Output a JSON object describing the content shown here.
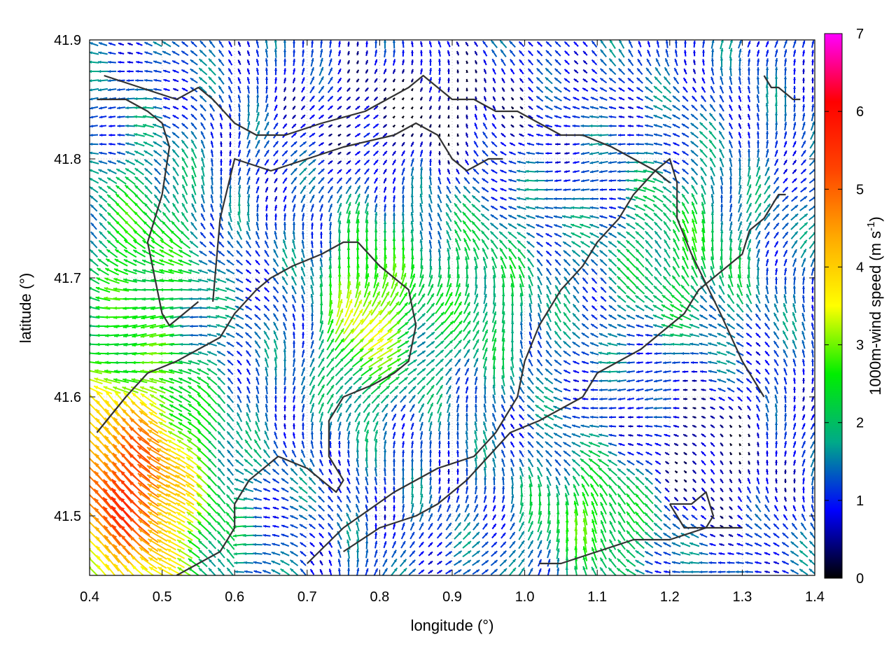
{
  "chart_data": {
    "type": "vector-field",
    "title": "",
    "xlabel": "longitude (°)",
    "ylabel": "latitude (°)",
    "xlim": [
      0.4,
      1.4
    ],
    "ylim": [
      41.45,
      41.9
    ],
    "xticks": [
      0.4,
      0.5,
      0.6,
      0.7,
      0.8,
      0.9,
      1.0,
      1.1,
      1.2,
      1.3,
      1.4
    ],
    "xtick_labels": [
      "0.4",
      "0.5",
      "0.6",
      "0.7",
      "0.8",
      "0.9",
      "1.0",
      "1.1",
      "1.2",
      "1.3",
      "1.4"
    ],
    "yticks": [
      41.5,
      41.6,
      41.7,
      41.8,
      41.9
    ],
    "ytick_labels": [
      "41.5",
      "41.6",
      "41.7",
      "41.8",
      "41.9"
    ],
    "grid": true,
    "legend": "none",
    "colorbar": {
      "label_main": "1000m-wind speed (m s",
      "label_sup": "-1",
      "label_end": ")",
      "range": [
        0,
        7
      ],
      "ticks": [
        "0",
        "1",
        "2",
        "3",
        "4",
        "5",
        "6",
        "7"
      ],
      "colormap": [
        "#000000",
        "#0000ff",
        "#00aa88",
        "#00ee00",
        "#ffff00",
        "#ffaa00",
        "#ff4400",
        "#ff0000",
        "#ff00ff"
      ]
    },
    "vectors_note": "arrow field estimated",
    "contours": [
      {
        "name": "c1",
        "lon": [
          0.42,
          0.47,
          0.52,
          0.55,
          0.57,
          0.6,
          0.63,
          0.67,
          0.72,
          0.78,
          0.81,
          0.84,
          0.86,
          0.88,
          0.9,
          0.93,
          0.96,
          0.99,
          1.02,
          1.05,
          1.08,
          1.12,
          1.15,
          1.18,
          1.2
        ],
        "lat": [
          41.87,
          41.86,
          41.85,
          41.86,
          41.85,
          41.83,
          41.82,
          41.82,
          41.83,
          41.84,
          41.85,
          41.86,
          41.87,
          41.86,
          41.85,
          41.85,
          41.84,
          41.84,
          41.83,
          41.82,
          41.82,
          41.81,
          41.8,
          41.79,
          41.78
        ]
      },
      {
        "name": "c2",
        "lon": [
          0.41,
          0.45,
          0.48,
          0.5,
          0.51,
          0.5,
          0.48,
          0.49,
          0.5,
          0.51,
          0.53,
          0.55
        ],
        "lat": [
          41.85,
          41.85,
          41.84,
          41.83,
          41.81,
          41.77,
          41.73,
          41.7,
          41.67,
          41.66,
          41.67,
          41.68
        ]
      },
      {
        "name": "c3",
        "lon": [
          0.57,
          0.58,
          0.6,
          0.65,
          0.7,
          0.75,
          0.82,
          0.85,
          0.88,
          0.9,
          0.92,
          0.95,
          0.97
        ],
        "lat": [
          41.68,
          41.75,
          41.8,
          41.79,
          41.8,
          41.81,
          41.82,
          41.83,
          41.82,
          41.8,
          41.79,
          41.8,
          41.8
        ]
      },
      {
        "name": "c4",
        "lon": [
          0.41,
          0.45,
          0.48,
          0.52,
          0.55,
          0.58,
          0.6,
          0.63,
          0.65,
          0.68,
          0.72,
          0.75,
          0.77
        ],
        "lat": [
          41.57,
          41.6,
          41.62,
          41.63,
          41.64,
          41.65,
          41.67,
          41.69,
          41.7,
          41.71,
          41.72,
          41.73,
          41.73
        ]
      },
      {
        "name": "c5",
        "lon": [
          0.77,
          0.8,
          0.84,
          0.85,
          0.84,
          0.82,
          0.79,
          0.75,
          0.73,
          0.73,
          0.75,
          0.74,
          0.7,
          0.66,
          0.62,
          0.6,
          0.6,
          0.58,
          0.55,
          0.52
        ],
        "lat": [
          41.73,
          41.71,
          41.69,
          41.66,
          41.63,
          41.62,
          41.61,
          41.6,
          41.58,
          41.55,
          41.53,
          41.52,
          41.54,
          41.55,
          41.53,
          41.51,
          41.49,
          41.47,
          41.46,
          41.45
        ]
      },
      {
        "name": "c6",
        "lon": [
          0.7,
          0.75,
          0.82,
          0.88,
          0.93,
          0.96,
          0.99,
          1.0,
          1.02,
          1.05,
          1.08,
          1.1,
          1.13,
          1.15,
          1.18,
          1.2,
          1.21,
          1.21,
          1.23,
          1.27,
          1.3,
          1.33
        ],
        "lat": [
          41.46,
          41.49,
          41.52,
          41.54,
          41.55,
          41.57,
          41.6,
          41.63,
          41.66,
          41.69,
          41.71,
          41.73,
          41.75,
          41.77,
          41.79,
          41.8,
          41.78,
          41.75,
          41.72,
          41.67,
          41.63,
          41.6
        ]
      },
      {
        "name": "c7",
        "lon": [
          0.75,
          0.8,
          0.85,
          0.88,
          0.92,
          0.95,
          0.98,
          1.02,
          1.05,
          1.08,
          1.1,
          1.13,
          1.16,
          1.18,
          1.2,
          1.22,
          1.24,
          1.26,
          1.28,
          1.3,
          1.31,
          1.33,
          1.34,
          1.35,
          1.36
        ],
        "lat": [
          41.47,
          41.49,
          41.5,
          41.51,
          41.53,
          41.55,
          41.57,
          41.58,
          41.59,
          41.6,
          41.62,
          41.63,
          41.64,
          41.65,
          41.66,
          41.67,
          41.69,
          41.7,
          41.71,
          41.72,
          41.74,
          41.75,
          41.76,
          41.77,
          41.77
        ]
      },
      {
        "name": "c8",
        "lon": [
          1.02,
          1.05,
          1.1,
          1.15,
          1.2,
          1.25,
          1.3
        ],
        "lat": [
          41.46,
          41.46,
          41.47,
          41.48,
          41.48,
          41.49,
          41.49
        ]
      },
      {
        "name": "c9",
        "lon": [
          1.33,
          1.34,
          1.35,
          1.37,
          1.38
        ],
        "lat": [
          41.87,
          41.86,
          41.86,
          41.85,
          41.85
        ]
      },
      {
        "name": "c10",
        "lon": [
          1.2,
          1.23,
          1.25,
          1.26,
          1.25,
          1.22,
          1.2
        ],
        "lat": [
          41.51,
          41.51,
          41.52,
          41.5,
          41.49,
          41.49,
          41.51
        ]
      }
    ]
  }
}
